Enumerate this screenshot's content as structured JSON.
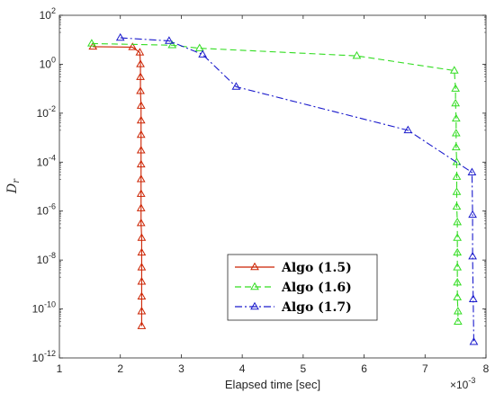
{
  "chart_data": {
    "type": "line",
    "xlabel": "Elapsed time [sec]",
    "ylabel": "D",
    "ylabel_sub": "r",
    "xlim": [
      1,
      8
    ],
    "ylim_log10": [
      -12,
      2
    ],
    "y_scale": "log",
    "x_multiplier_label": "×10",
    "x_multiplier_exp": "-3",
    "x_ticks": [
      "1",
      "2",
      "3",
      "4",
      "5",
      "6",
      "7",
      "8"
    ],
    "y_tick_base": "10",
    "y_tick_exps": [
      "2",
      "0",
      "-2",
      "-4",
      "-6",
      "-8",
      "-10",
      "-12"
    ],
    "grid": false,
    "legend_position": "lower-right",
    "series": [
      {
        "name": "Algo (1.5)",
        "color": "#cc2200",
        "style": "solid",
        "points": [
          [
            1.55,
            5.2
          ],
          [
            2.2,
            5.0
          ],
          [
            2.32,
            3.0
          ],
          [
            2.33,
            1.0
          ],
          [
            2.33,
            0.3
          ],
          [
            2.33,
            0.08
          ],
          [
            2.34,
            0.02
          ],
          [
            2.34,
            0.005
          ],
          [
            2.34,
            0.0013
          ],
          [
            2.34,
            0.0003
          ],
          [
            2.34,
            8e-05
          ],
          [
            2.34,
            2e-05
          ],
          [
            2.34,
            5e-06
          ],
          [
            2.34,
            1.3e-06
          ],
          [
            2.34,
            3.2e-07
          ],
          [
            2.35,
            8e-08
          ],
          [
            2.35,
            2e-08
          ],
          [
            2.35,
            5e-09
          ],
          [
            2.35,
            1.3e-09
          ],
          [
            2.35,
            3.2e-10
          ],
          [
            2.35,
            8e-11
          ],
          [
            2.35,
            2e-11
          ]
        ]
      },
      {
        "name": "Algo (1.6)",
        "color": "#33dd22",
        "style": "dashed",
        "points": [
          [
            1.53,
            7.0
          ],
          [
            2.85,
            6.0
          ],
          [
            3.3,
            4.5
          ],
          [
            5.88,
            2.2
          ],
          [
            7.48,
            0.55
          ],
          [
            7.5,
            0.1
          ],
          [
            7.5,
            0.025
          ],
          [
            7.51,
            0.006
          ],
          [
            7.51,
            0.0015
          ],
          [
            7.51,
            0.0004
          ],
          [
            7.52,
            0.0001
          ],
          [
            7.52,
            2.5e-05
          ],
          [
            7.52,
            6e-06
          ],
          [
            7.52,
            1.5e-06
          ],
          [
            7.53,
            3.5e-07
          ],
          [
            7.53,
            8e-08
          ],
          [
            7.53,
            2e-08
          ],
          [
            7.53,
            5e-09
          ],
          [
            7.53,
            1.2e-09
          ],
          [
            7.53,
            3e-10
          ],
          [
            7.54,
            8e-11
          ],
          [
            7.54,
            3e-11
          ]
        ]
      },
      {
        "name": "Algo (1.7)",
        "color": "#1a1acc",
        "style": "dashdot",
        "points": [
          [
            2.0,
            12.0
          ],
          [
            2.8,
            9.0
          ],
          [
            3.35,
            2.5
          ],
          [
            3.9,
            0.12
          ],
          [
            6.72,
            0.002
          ],
          [
            7.77,
            3.8e-05
          ],
          [
            7.78,
            7e-07
          ],
          [
            7.78,
            1.4e-08
          ],
          [
            7.79,
            2.5e-10
          ],
          [
            7.8,
            4.5e-12
          ]
        ]
      }
    ]
  }
}
